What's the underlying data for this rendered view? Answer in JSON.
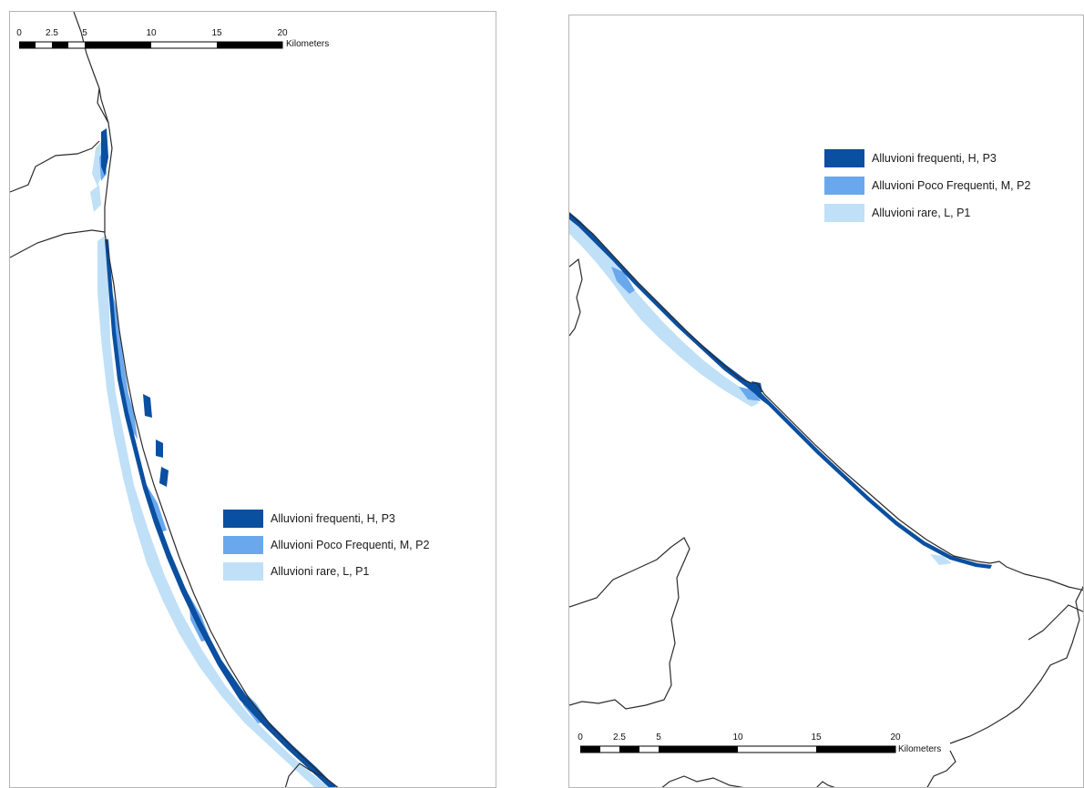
{
  "colors": {
    "high": "#0a4fa0",
    "medium": "#6aa8ee",
    "low": "#bfe0f7",
    "outline": "#2b2b2b",
    "frame": "#b5b5b5"
  },
  "legend": [
    {
      "label": "Alluvioni frequenti, H, P3",
      "color": "#0a4fa0"
    },
    {
      "label": "Alluvioni Poco Frequenti, M, P2",
      "color": "#6aa8ee"
    },
    {
      "label": "Alluvioni rare, L, P1",
      "color": "#bfe0f7"
    }
  ],
  "scalebar": {
    "ticks": [
      "0",
      "2.5",
      "5",
      "10",
      "15",
      "20"
    ],
    "unit": "Kilometers"
  }
}
